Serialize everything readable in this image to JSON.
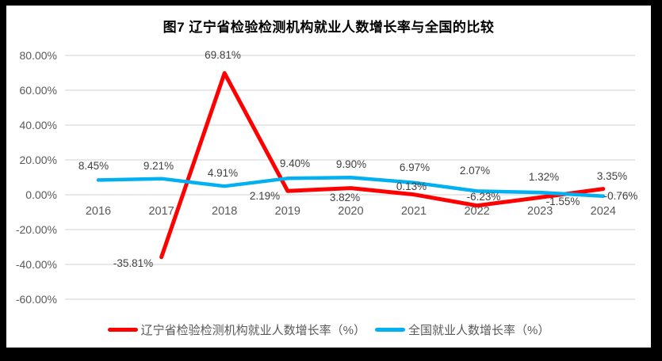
{
  "figure": {
    "title": "图7 辽宁省检验检测机构就业人数增长率与全国的比较"
  },
  "chart_data": {
    "type": "line",
    "title": "图7 辽宁省检验检测机构就业人数增长率与全国的比较",
    "categories": [
      "2016",
      "2017",
      "2018",
      "2019",
      "2020",
      "2021",
      "2022",
      "2023",
      "2024"
    ],
    "series": [
      {
        "name": "辽宁省检验检测机构就业人数增长率（%）",
        "color": "#FF0000",
        "values": [
          null,
          -35.81,
          69.81,
          2.19,
          3.82,
          0.13,
          -6.23,
          -1.55,
          3.35
        ],
        "labels": [
          null,
          "-35.81%",
          "69.81%",
          "2.19%",
          "3.82%",
          "0.13%",
          "-6.23%",
          "-1.55%",
          "3.35%"
        ]
      },
      {
        "name": "全国就业人数增长率（%）",
        "color": "#00B0F0",
        "values": [
          8.45,
          9.21,
          4.91,
          9.4,
          9.9,
          6.97,
          2.07,
          1.32,
          -0.76
        ],
        "labels": [
          "8.45%",
          "9.21%",
          "4.91%",
          "9.40%",
          "9.90%",
          "6.97%",
          "2.07%",
          "1.32%",
          "-0.76%"
        ]
      }
    ],
    "y_axis": {
      "min": -60,
      "max": 80,
      "step": 20,
      "tick_labels": [
        "80.00%",
        "60.00%",
        "40.00%",
        "20.00%",
        "0.00%",
        "-20.00%",
        "-40.00%",
        "-60.00%"
      ]
    },
    "x_axis": {
      "tick_labels": [
        "2016",
        "2017",
        "2018",
        "2019",
        "2020",
        "2021",
        "2022",
        "2023",
        "2024"
      ]
    },
    "grid": true,
    "legend_position": "bottom",
    "colors": {
      "gridline": "#D9D9D9",
      "axis_tick_text": "#595959",
      "data_label_text": "#404040",
      "title_text": "#000000",
      "frame_border": "#000000",
      "background": "#FFFFFF"
    }
  },
  "legend": {
    "items": [
      {
        "label": "辽宁省检验检测机构就业人数增长率（%）",
        "color": "#FF0000"
      },
      {
        "label": "全国就业人数增长率（%）",
        "color": "#00B0F0"
      }
    ]
  }
}
